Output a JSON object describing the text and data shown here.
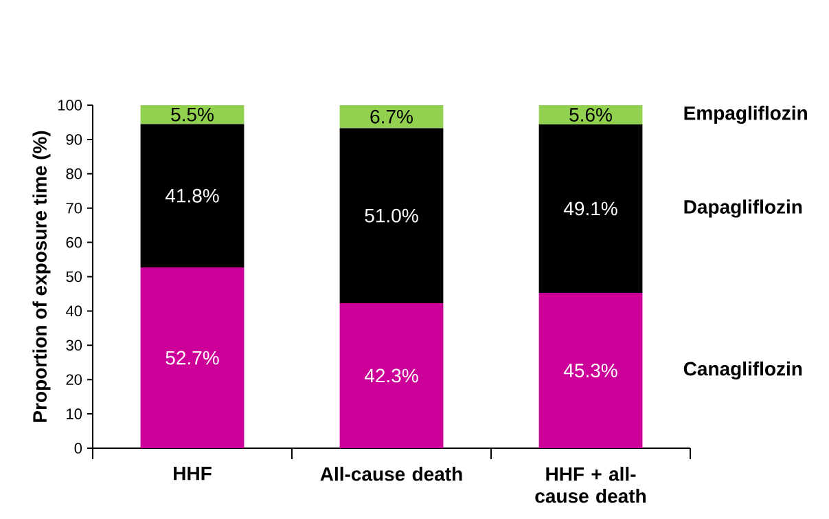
{
  "chart_data": {
    "type": "bar",
    "stacked": true,
    "ylabel": "Proportion of exposure time (%)",
    "categories": [
      "HHF",
      "All-cause death",
      "HHF + all-cause death"
    ],
    "series": [
      {
        "name": "Canagliflozin",
        "color": "#cc0099",
        "values": [
          52.7,
          42.3,
          45.3
        ],
        "value_labels": [
          "52.7%",
          "42.3%",
          "45.3%"
        ]
      },
      {
        "name": "Dapagliflozin",
        "color": "#000000",
        "values": [
          41.8,
          51.0,
          49.1
        ],
        "value_labels": [
          "41.8%",
          "51.0%",
          "49.1%"
        ]
      },
      {
        "name": "Empagliflozin",
        "color": "#92d050",
        "values": [
          5.5,
          6.7,
          5.6
        ],
        "value_labels": [
          "5.5%",
          "6.7%",
          "5.6%"
        ]
      }
    ],
    "ylim": [
      0,
      100
    ],
    "yticks": [
      0,
      10,
      20,
      30,
      40,
      50,
      60,
      70,
      80,
      90,
      100
    ],
    "grid": false
  }
}
